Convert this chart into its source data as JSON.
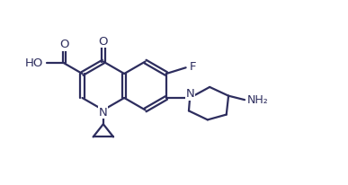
{
  "bg_color": "#ffffff",
  "line_color": "#2d2d5e",
  "line_width": 1.6,
  "font_size": 9.5,
  "figsize": [
    3.87,
    2.06
  ],
  "dpi": 100,
  "xlim": [
    0,
    10
  ],
  "ylim": [
    0,
    5.5
  ]
}
